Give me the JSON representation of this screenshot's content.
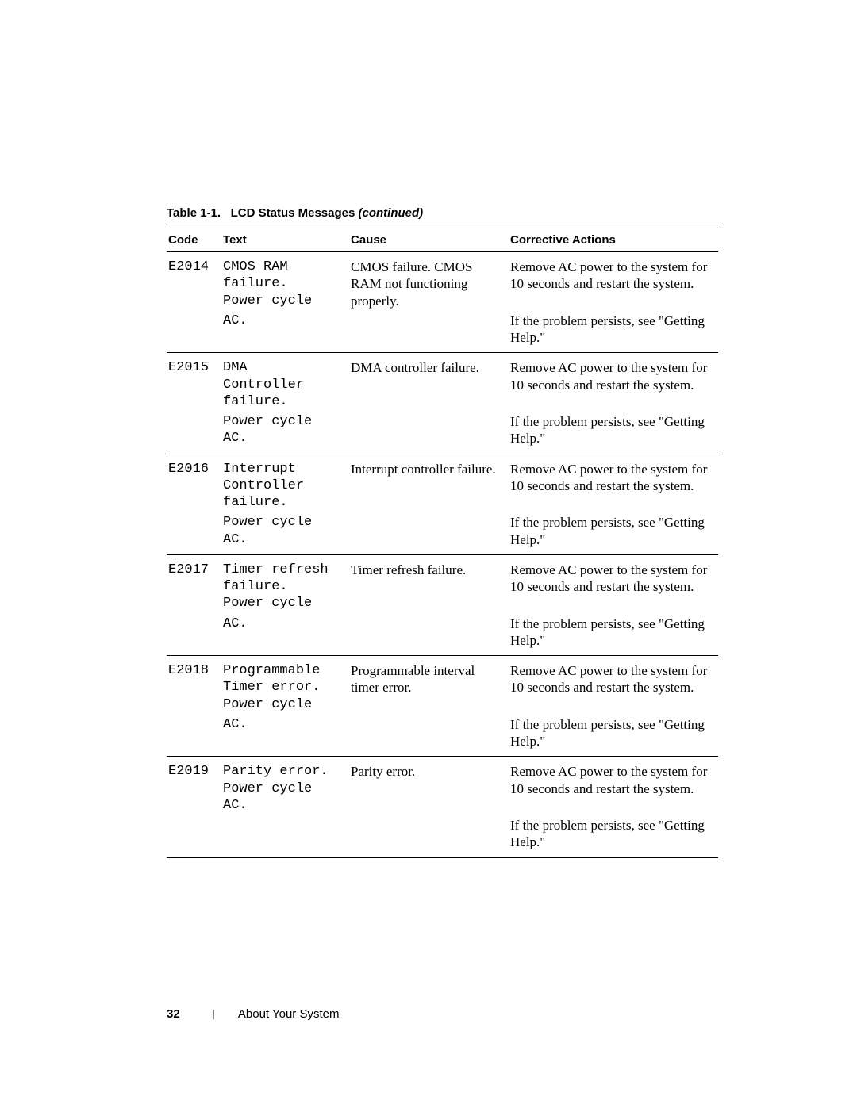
{
  "table": {
    "caption_prefix": "Table 1-1.",
    "caption_main": "LCD Status Messages",
    "caption_suffix": "(continued)"
  },
  "columns": {
    "code": "Code",
    "text": "Text",
    "cause": "Cause",
    "action": "Corrective Actions"
  },
  "rows": [
    {
      "code": "E2014",
      "text_line1": "CMOS RAM\nfailure.\nPower cycle",
      "text_line2": "AC.",
      "cause": "CMOS failure. CMOS RAM not functioning properly.",
      "action1": "Remove AC power to the system for 10 seconds and restart the system.",
      "action2": "If the problem persists, see \"Getting Help.\""
    },
    {
      "code": "E2015",
      "text_line1": "DMA\nController\nfailure.",
      "text_line2": "Power cycle\nAC.",
      "cause": "DMA controller failure.",
      "action1": "Remove AC power to the system for 10 seconds and restart the system.",
      "action2": "If the problem persists, see \"Getting Help.\""
    },
    {
      "code": "E2016",
      "text_line1": "Interrupt\nController\nfailure.",
      "text_line2": "Power cycle\nAC.",
      "cause": "Interrupt controller failure.",
      "action1": "Remove AC power to the system for 10 seconds and restart the system.",
      "action2": "If the problem persists, see \"Getting Help.\""
    },
    {
      "code": "E2017",
      "text_line1": "Timer refresh\nfailure.\nPower cycle",
      "text_line2": "AC.",
      "cause": "Timer refresh failure.",
      "action1": "Remove AC power to the system for 10 seconds and restart the system.",
      "action2": "If the problem persists, see \"Getting Help.\""
    },
    {
      "code": "E2018",
      "text_line1": "Programmable\nTimer error.\nPower cycle",
      "text_line2": "AC.",
      "cause": "Programmable interval timer error.",
      "action1": "Remove AC power to the system for 10 seconds and restart the system.",
      "action2": "If the problem persists, see \"Getting Help.\""
    },
    {
      "code": "E2019",
      "text_line1": "Parity error.\nPower cycle\nAC.",
      "text_line2": "",
      "cause": "Parity error.",
      "action1": "Remove AC power to the system for 10 seconds and restart the system.",
      "action2": "If the problem persists, see \"Getting Help.\""
    }
  ],
  "footer": {
    "page": "32",
    "section": "About Your System"
  }
}
